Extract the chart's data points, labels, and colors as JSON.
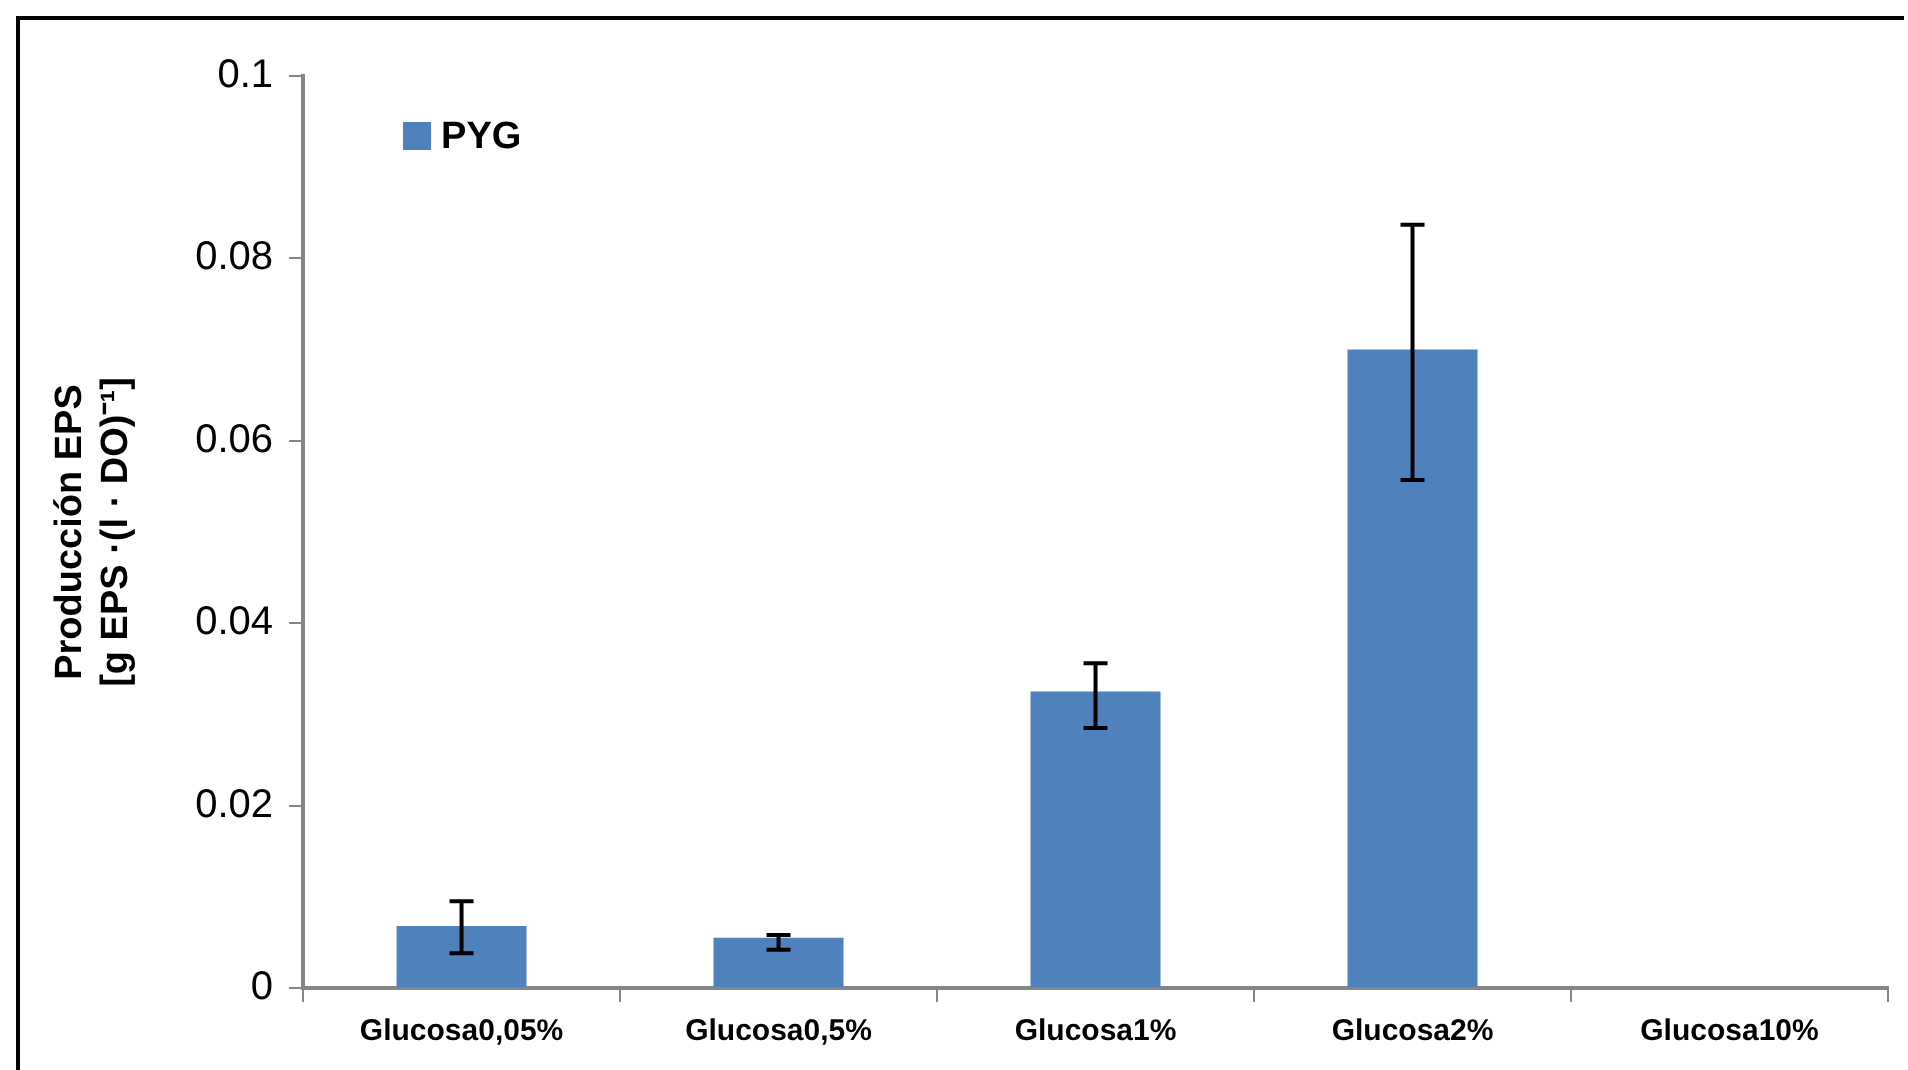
{
  "chart_data": {
    "type": "bar",
    "ylabel": "Producción EPS\n[g EPS ·(l · DO)⁻¹]",
    "categories": [
      "Glucosa0,05%",
      "Glucosa0,5%",
      "Glucosa1%",
      "Glucosa2%",
      "Glucosa10%"
    ],
    "series": [
      {
        "name": "PYG",
        "color": "#4f81bd",
        "values": [
          0.0068,
          0.0055,
          0.0325,
          0.07,
          0
        ],
        "errors": [
          [
            0.0038,
            0.0095
          ],
          [
            0.0042,
            0.0058
          ],
          [
            0.0285,
            0.0356
          ],
          [
            0.0557,
            0.0837
          ],
          null
        ]
      }
    ],
    "ylim": [
      0,
      0.1
    ],
    "yticks": [
      0,
      0.02,
      0.04,
      0.06,
      0.08,
      0.1
    ],
    "grid": false,
    "legend": "top left"
  }
}
